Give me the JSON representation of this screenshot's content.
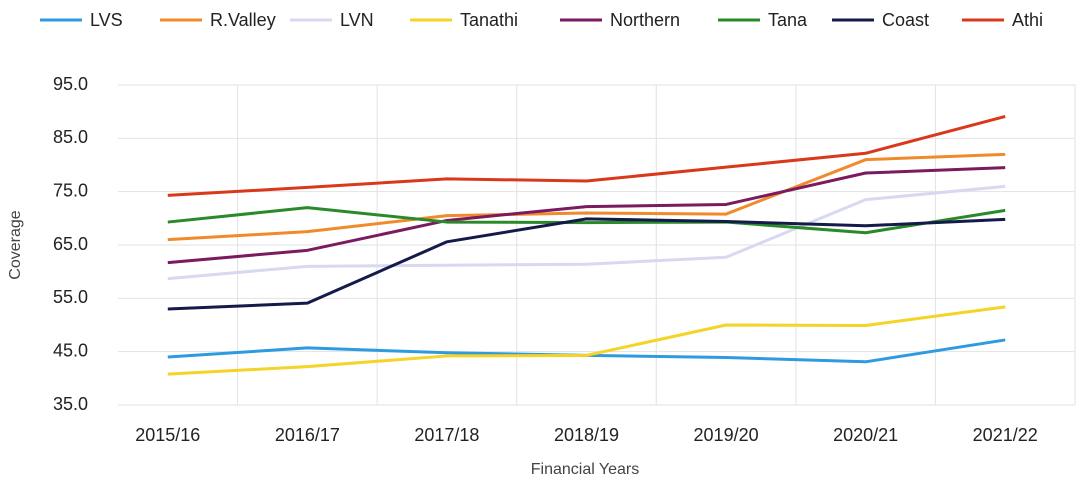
{
  "chart_data": {
    "type": "line",
    "x_label": "Financial Years",
    "y_label": "Coverage",
    "categories": [
      "2015/16",
      "2016/17",
      "2017/18",
      "2018/19",
      "2019/20",
      "2020/21",
      "2021/22"
    ],
    "series": [
      {
        "name": "LVS",
        "color": "#2e9be0",
        "values": [
          44.0,
          45.7,
          44.8,
          44.3,
          43.9,
          43.1,
          47.2
        ]
      },
      {
        "name": "R.Valley",
        "color": "#f08a2a",
        "values": [
          66.0,
          67.5,
          70.5,
          71.0,
          70.8,
          81.0,
          82.0
        ]
      },
      {
        "name": "LVN",
        "color": "#d8d8f0",
        "values": [
          58.7,
          61.0,
          61.2,
          61.4,
          62.7,
          73.5,
          76.0
        ]
      },
      {
        "name": "Tanathi",
        "color": "#f5d327",
        "values": [
          40.8,
          42.2,
          44.2,
          44.3,
          50.0,
          49.9,
          53.4
        ]
      },
      {
        "name": "Northern",
        "color": "#7b1a5e",
        "values": [
          61.7,
          64.0,
          69.6,
          72.2,
          72.6,
          78.5,
          79.5
        ]
      },
      {
        "name": "Tana",
        "color": "#2a8a2a",
        "values": [
          69.3,
          72.0,
          69.3,
          69.2,
          69.3,
          67.3,
          71.5
        ]
      },
      {
        "name": "Coast",
        "color": "#141a4a",
        "values": [
          53.0,
          54.1,
          65.6,
          69.9,
          69.4,
          68.6,
          69.8
        ]
      },
      {
        "name": "Athi",
        "color": "#d9391a",
        "values": [
          74.3,
          75.8,
          77.4,
          77.0,
          79.6,
          82.2,
          89.1
        ]
      }
    ],
    "ylim": [
      35,
      95
    ],
    "yticks": [
      {
        "value": 35,
        "label": "35.0"
      },
      {
        "value": 45,
        "label": "45.0"
      },
      {
        "value": 55,
        "label": "55.0"
      },
      {
        "value": 65,
        "label": "65.0"
      },
      {
        "value": 75,
        "label": "75.0"
      },
      {
        "value": 85,
        "label": "85.0"
      },
      {
        "value": 95,
        "label": "95.0"
      }
    ],
    "grid": true,
    "legend": "top"
  }
}
